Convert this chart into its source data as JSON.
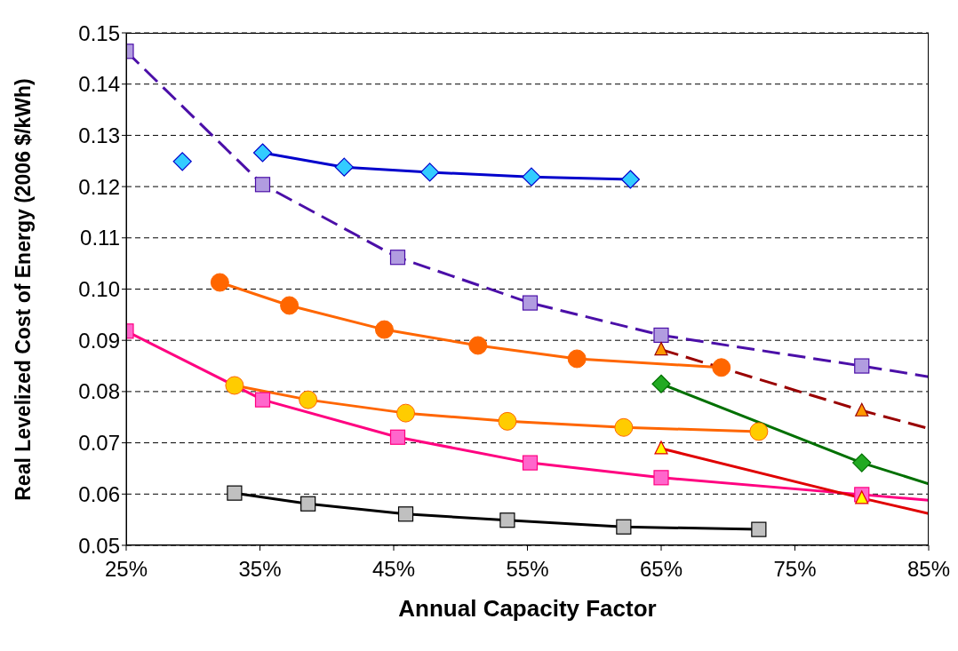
{
  "chart_data": {
    "type": "line",
    "xlabel": "Annual Capacity Factor",
    "ylabel": "Real Levelized Cost of Energy (2006 $/kWh)",
    "xlim": [
      25,
      85
    ],
    "xticks": [
      {
        "value": 25,
        "label": "25%"
      },
      {
        "value": 35,
        "label": "35%"
      },
      {
        "value": 45,
        "label": "45%"
      },
      {
        "value": 55,
        "label": "55%"
      },
      {
        "value": 65,
        "label": "65%"
      },
      {
        "value": 75,
        "label": "75%"
      },
      {
        "value": 85,
        "label": "85%"
      }
    ],
    "ylim": [
      0.05,
      0.15
    ],
    "yticks": [
      0.05,
      0.06,
      0.07,
      0.08,
      0.09,
      {
        "value": 0.1,
        "label": "0.10"
      },
      0.11,
      0.12,
      0.13,
      0.14,
      0.15
    ],
    "grid": "y",
    "legend": false,
    "series": [
      {
        "color": "#0000cc",
        "colors": [
          "#33ccff",
          null,
          "#33ccff",
          "#33ccff",
          "#33ccff",
          "#33ccff",
          "#33ccff"
        ],
        "marker": "diamond",
        "line_style": "solid",
        "x": [
          29.2,
          32,
          35.2,
          41.3,
          47.7,
          55.3,
          62.7
        ],
        "values": [
          0.1249,
          null,
          0.1266,
          0.1238,
          0.1228,
          0.1219,
          0.1214
        ]
      },
      {
        "color": "#4b0fa8",
        "colors": [
          "#b19ce0",
          "#b19ce0",
          "#b19ce0",
          "#b19ce0",
          "#b19ce0",
          "#b19ce0",
          null
        ],
        "marker": "square",
        "line_style": "dashed",
        "x": [
          25,
          35.2,
          45.3,
          55.2,
          65,
          80,
          85
        ],
        "values": [
          0.1464,
          0.1204,
          0.1062,
          0.0973,
          0.091,
          0.085,
          0.0829
        ]
      },
      {
        "color": "#990000",
        "colors": [
          "#ff9900",
          "#ff9900",
          null
        ],
        "marker": "triangle",
        "line_style": "dashed",
        "x": [
          65,
          80,
          85
        ],
        "values": [
          0.0882,
          0.0763,
          0.0728
        ]
      },
      {
        "color": "#007000",
        "colors": [
          "#22aa22",
          "#22aa22",
          null
        ],
        "marker": "diamond",
        "line_style": "solid",
        "x": [
          65,
          80,
          85
        ],
        "values": [
          0.0815,
          0.0661,
          0.062
        ]
      },
      {
        "color": "#ff6600",
        "colors": [
          "#ff6600",
          "#ff6600",
          "#ff6600",
          "#ff6600",
          "#ff6600",
          "#ff6600"
        ],
        "marker": "circle",
        "line_style": "solid",
        "x": [
          32,
          37.2,
          44.3,
          51.3,
          58.7,
          69.5
        ],
        "values": [
          0.1013,
          0.0968,
          0.0921,
          0.089,
          0.0864,
          0.0847
        ]
      },
      {
        "color": "#ff6600",
        "colors": [
          "#ffcc00",
          "#ffcc00",
          "#ffcc00",
          "#ffcc00",
          "#ffcc00",
          "#ffcc00"
        ],
        "marker": "circle",
        "line_style": "solid",
        "x": [
          33.1,
          38.6,
          45.9,
          53.5,
          62.2,
          72.3
        ],
        "values": [
          0.0812,
          0.0784,
          0.0758,
          0.0742,
          0.073,
          0.0722
        ]
      },
      {
        "color": "#ff0080",
        "colors": [
          "#ff66cc",
          "#ff66cc",
          "#ff66cc",
          "#ff66cc",
          "#ff66cc",
          "#ff66cc",
          null
        ],
        "marker": "square",
        "line_style": "solid",
        "x": [
          25,
          35.2,
          45.3,
          55.2,
          65,
          80,
          85
        ],
        "values": [
          0.0918,
          0.0784,
          0.0711,
          0.0661,
          0.0632,
          0.0599,
          0.0588
        ]
      },
      {
        "color": "#000000",
        "colors": [
          "#c0c0c0",
          "#c0c0c0",
          "#c0c0c0",
          "#c0c0c0",
          "#c0c0c0",
          "#c0c0c0"
        ],
        "marker": "square",
        "line_style": "solid",
        "x": [
          33.1,
          38.6,
          45.9,
          53.5,
          62.2,
          72.3
        ],
        "values": [
          0.0602,
          0.0581,
          0.0561,
          0.0549,
          0.0536,
          0.0531
        ]
      },
      {
        "color": "#e00000",
        "colors": [
          "#ffff00",
          "#ffff00",
          null
        ],
        "marker": "triangle",
        "line_style": "solid",
        "x": [
          65,
          80,
          85
        ],
        "values": [
          0.0689,
          0.0592,
          0.0562
        ]
      }
    ]
  }
}
